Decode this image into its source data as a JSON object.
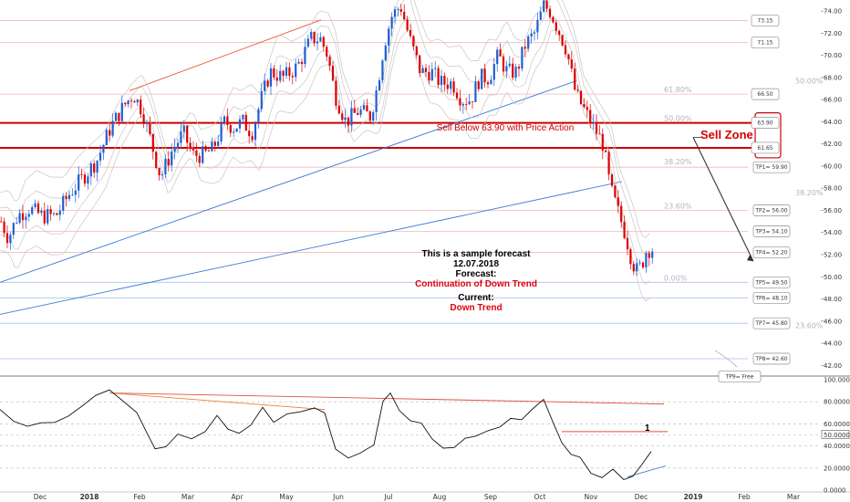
{
  "chart_data": [
    {
      "type": "candlestick",
      "ylim": [
        41.2,
        75.0
      ],
      "y_ticks": [
        "74.00",
        "72.00",
        "70.00",
        "68.00",
        "66.00",
        "64.00",
        "62.00",
        "60.00",
        "58.00",
        "56.00",
        "54.00",
        "52.00",
        "50.00",
        "48.00",
        "46.00",
        "44.00",
        "42.00"
      ],
      "x_ticks": [
        "Dec",
        "2018",
        "Feb",
        "Mar",
        "Apr",
        "May",
        "Jun",
        "Jul",
        "Aug",
        "Sep",
        "Oct",
        "Nov",
        "Dec",
        "2019",
        "Feb",
        "Mar"
      ],
      "price_path": [
        [
          0,
          55.0
        ],
        [
          8,
          53.5
        ],
        [
          18,
          55.5
        ],
        [
          30,
          56.2
        ],
        [
          45,
          55.5
        ],
        [
          60,
          55.5
        ],
        [
          75,
          57.5
        ],
        [
          90,
          59.0
        ],
        [
          105,
          60.5
        ],
        [
          120,
          63.5
        ],
        [
          135,
          65.5
        ],
        [
          145,
          66.5
        ],
        [
          155,
          65.0
        ],
        [
          165,
          62.0
        ],
        [
          175,
          59.0
        ],
        [
          188,
          61.5
        ],
        [
          200,
          63.0
        ],
        [
          210,
          61.0
        ],
        [
          222,
          61.0
        ],
        [
          232,
          61.5
        ],
        [
          245,
          64.0
        ],
        [
          255,
          63.5
        ],
        [
          265,
          64.0
        ],
        [
          275,
          63.0
        ],
        [
          285,
          66.0
        ],
        [
          295,
          68.5
        ],
        [
          310,
          68.0
        ],
        [
          325,
          69.0
        ],
        [
          340,
          71.5
        ],
        [
          350,
          71.5
        ],
        [
          358,
          70.0
        ],
        [
          366,
          66.5
        ],
        [
          378,
          64.0
        ],
        [
          392,
          65.0
        ],
        [
          405,
          64.5
        ],
        [
          412,
          67.0
        ],
        [
          420,
          71.0
        ],
        [
          428,
          73.5
        ],
        [
          438,
          74.5
        ],
        [
          448,
          71.5
        ],
        [
          460,
          68.5
        ],
        [
          472,
          68.5
        ],
        [
          482,
          67.5
        ],
        [
          495,
          67.5
        ],
        [
          505,
          66.0
        ],
        [
          515,
          66.0
        ],
        [
          525,
          68.0
        ],
        [
          535,
          68.0
        ],
        [
          545,
          70.0
        ],
        [
          555,
          68.5
        ],
        [
          565,
          68.5
        ],
        [
          575,
          71.0
        ],
        [
          585,
          72.0
        ],
        [
          595,
          74.5
        ],
        [
          602,
          74.0
        ],
        [
          610,
          72.5
        ],
        [
          620,
          70.5
        ],
        [
          630,
          66.5
        ],
        [
          640,
          65.0
        ],
        [
          650,
          63.5
        ],
        [
          660,
          62.0
        ],
        [
          668,
          58.0
        ],
        [
          676,
          56.0
        ],
        [
          684,
          54.0
        ],
        [
          690,
          52.0
        ],
        [
          696,
          50.5
        ],
        [
          702,
          51.0
        ],
        [
          708,
          52.5
        ],
        [
          714,
          52.5
        ]
      ],
      "fib_levels": [
        {
          "label": "61.80%",
          "value": 66.5
        },
        {
          "label": "50.00%",
          "value": 63.9
        },
        {
          "label": "38.20%",
          "value": 60.0
        },
        {
          "label": "23.60%",
          "value": 56.0
        },
        {
          "label": "0.00%",
          "value": 49.5
        }
      ],
      "fib_right_labels": [
        {
          "label": "50.00%",
          "value": 67.7
        },
        {
          "label": "38.20%",
          "value": 57.6
        },
        {
          "label": "23.60%",
          "value": 45.6
        }
      ],
      "target_levels": [
        {
          "label": "73.15",
          "value": 73.15
        },
        {
          "label": "71.15",
          "value": 71.15
        },
        {
          "label": "66.50",
          "value": 66.5
        },
        {
          "label": "63.90",
          "value": 63.9
        },
        {
          "label": "61.65",
          "value": 61.65
        },
        {
          "label": "TP1= 59.90",
          "value": 59.9
        },
        {
          "label": "TP2= 56.00",
          "value": 56.0
        },
        {
          "label": "TP3= 54.10",
          "value": 54.1
        },
        {
          "label": "TP4= 52.20",
          "value": 52.2
        },
        {
          "label": "TP5= 49.50",
          "value": 49.5
        },
        {
          "label": "TP6= 48.10",
          "value": 48.1
        },
        {
          "label": "TP7= 45.80",
          "value": 45.8
        },
        {
          "label": "TP8= 42.60",
          "value": 42.6
        },
        {
          "label": "TP9= Free",
          "value": 41.0
        }
      ],
      "sell_zone": {
        "upper": 63.9,
        "lower": 61.65
      }
    },
    {
      "type": "line",
      "ylim": [
        0,
        100
      ],
      "y_ticks": [
        "100.0000",
        "80.0000",
        "60.0000",
        "50.0000",
        "40.0000",
        "20.0000",
        "0.0000"
      ],
      "values": [
        [
          0,
          73
        ],
        [
          15,
          60
        ],
        [
          30,
          55
        ],
        [
          45,
          60
        ],
        [
          60,
          63
        ],
        [
          75,
          70
        ],
        [
          90,
          78
        ],
        [
          105,
          85
        ],
        [
          120,
          88
        ],
        [
          135,
          78
        ],
        [
          150,
          70
        ],
        [
          160,
          55
        ],
        [
          170,
          35
        ],
        [
          182,
          38
        ],
        [
          195,
          52
        ],
        [
          210,
          45
        ],
        [
          225,
          50
        ],
        [
          238,
          66
        ],
        [
          250,
          58
        ],
        [
          262,
          52
        ],
        [
          275,
          57
        ],
        [
          288,
          72
        ],
        [
          300,
          62
        ],
        [
          315,
          67
        ],
        [
          330,
          68
        ],
        [
          345,
          73
        ],
        [
          356,
          70
        ],
        [
          368,
          40
        ],
        [
          382,
          32
        ],
        [
          395,
          35
        ],
        [
          410,
          44
        ],
        [
          420,
          78
        ],
        [
          428,
          85
        ],
        [
          438,
          75
        ],
        [
          450,
          62
        ],
        [
          462,
          58
        ],
        [
          474,
          48
        ],
        [
          486,
          40
        ],
        [
          498,
          36
        ],
        [
          510,
          46
        ],
        [
          522,
          52
        ],
        [
          535,
          56
        ],
        [
          548,
          57
        ],
        [
          560,
          62
        ],
        [
          572,
          65
        ],
        [
          584,
          76
        ],
        [
          596,
          80
        ],
        [
          606,
          65
        ],
        [
          616,
          40
        ],
        [
          626,
          35
        ],
        [
          636,
          28
        ],
        [
          648,
          18
        ],
        [
          660,
          12
        ],
        [
          672,
          16
        ],
        [
          684,
          10
        ],
        [
          694,
          11
        ],
        [
          704,
          26
        ],
        [
          714,
          32
        ]
      ],
      "annotation": "1"
    }
  ],
  "annotations": {
    "sell_text": "Sell Below 63.90 with Price Action",
    "sell_zone_label": "Sell Zone",
    "note_line1": "This is a sample forecast",
    "note_line2": "12.07.2018",
    "note_line3": "Forecast:",
    "note_line4": "Continuation of Down Trend",
    "note_line5": "Current:",
    "note_line6": "Down Trend"
  },
  "colors": {
    "up": "#1f5fd1",
    "down": "#dd0000",
    "sell_zone": "#cc0000",
    "trendline_blue": "#3a7bd5",
    "trendline_red": "#e8552e",
    "grid_red": "#f1b8b8",
    "grid_blue": "#a9c2ec",
    "bands": "#c6c6c6"
  }
}
